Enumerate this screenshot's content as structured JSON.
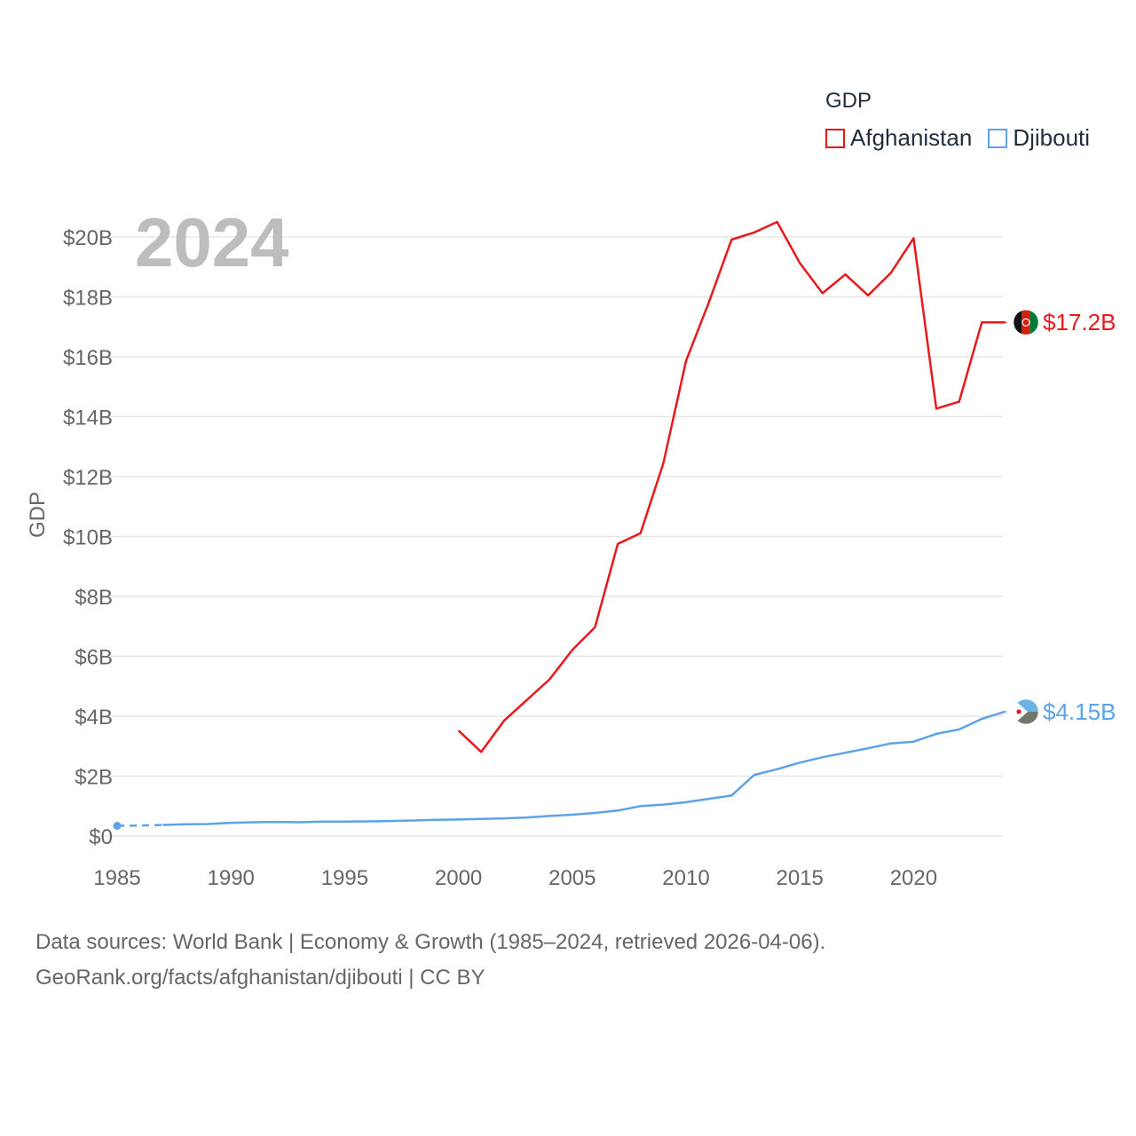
{
  "colors": {
    "afghanistan": "#e8191d",
    "djibouti": "#5da3e6",
    "grid": "#e6e6e6",
    "tick": "#666666",
    "year": "#bdbdbd"
  },
  "legend": {
    "title": "GDP",
    "items": [
      "Afghanistan",
      "Djibouti"
    ]
  },
  "year_label": "2024",
  "end_labels": {
    "afghanistan": "$17.2B",
    "djibouti": "$4.15B"
  },
  "footer": {
    "line1": "Data sources: World Bank | Economy & Growth (1985–2024, retrieved 2026-04-06).",
    "line2": "GeoRank.org/facts/afghanistan/djibouti | CC BY"
  },
  "chart_data": {
    "type": "line",
    "title": "GDP",
    "xlabel": "",
    "ylabel": "GDP",
    "xlim": [
      1985,
      2024
    ],
    "ylim": [
      0,
      20
    ],
    "y_unit": "billion USD",
    "xticks": [
      1985,
      1990,
      1995,
      2000,
      2005,
      2010,
      2015,
      2020
    ],
    "xtick_labels": [
      "1985",
      "1990",
      "1995",
      "2000",
      "2005",
      "2010",
      "2015",
      "2020"
    ],
    "yticks": [
      0,
      2,
      4,
      6,
      8,
      10,
      12,
      14,
      16,
      18,
      20
    ],
    "ytick_labels": [
      "$0",
      "$2B",
      "$4B",
      "$6B",
      "$8B",
      "$10B",
      "$12B",
      "$14B",
      "$16B",
      "$18B",
      "$20B"
    ],
    "series": [
      {
        "name": "Afghanistan",
        "key": "afghanistan",
        "x": [
          2000,
          2001,
          2002,
          2003,
          2004,
          2005,
          2006,
          2007,
          2008,
          2009,
          2010,
          2011,
          2012,
          2013,
          2014,
          2015,
          2016,
          2017,
          2018,
          2019,
          2020,
          2021,
          2022,
          2023,
          2024
        ],
        "values": [
          3.52,
          2.81,
          3.85,
          4.54,
          5.23,
          6.21,
          6.97,
          9.75,
          10.11,
          12.44,
          15.86,
          17.81,
          19.91,
          20.15,
          20.5,
          19.13,
          18.12,
          18.75,
          18.05,
          18.8,
          19.96,
          14.27,
          14.5,
          17.15,
          17.15
        ],
        "end_label": "$17.2B"
      },
      {
        "name": "Djibouti",
        "key": "djibouti",
        "x": [
          1985,
          1986,
          1987,
          1988,
          1989,
          1990,
          1991,
          1992,
          1993,
          1994,
          1995,
          1996,
          1997,
          1998,
          1999,
          2000,
          2001,
          2002,
          2003,
          2004,
          2005,
          2006,
          2007,
          2008,
          2009,
          2010,
          2011,
          2012,
          2013,
          2014,
          2015,
          2016,
          2017,
          2018,
          2019,
          2020,
          2021,
          2022,
          2023,
          2024
        ],
        "values": [
          0.34,
          0.35,
          0.37,
          0.39,
          0.4,
          0.44,
          0.46,
          0.47,
          0.46,
          0.48,
          0.48,
          0.49,
          0.5,
          0.52,
          0.54,
          0.55,
          0.57,
          0.59,
          0.62,
          0.67,
          0.71,
          0.77,
          0.85,
          1.0,
          1.05,
          1.13,
          1.24,
          1.35,
          2.04,
          2.23,
          2.45,
          2.63,
          2.78,
          2.93,
          3.09,
          3.15,
          3.41,
          3.56,
          3.91,
          4.15
        ],
        "dashed_until": 1987,
        "end_label": "$4.15B"
      }
    ]
  }
}
